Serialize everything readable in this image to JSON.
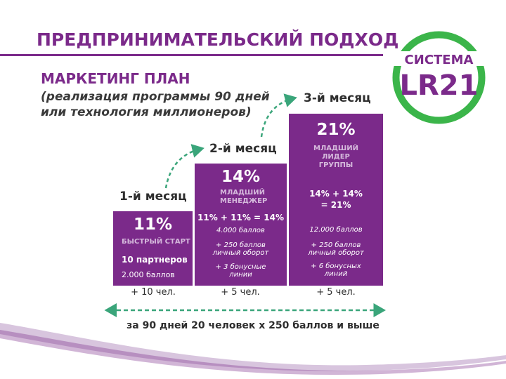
{
  "header": {
    "title": "ПРЕДПРИНИМАТЕЛЬСКИЙ ПОДХОД"
  },
  "logo": {
    "line1": "СИСТЕМА",
    "line2": "LR21"
  },
  "plan": {
    "heading": "МАРКЕТИНГ ПЛАН",
    "description_line1": "(реализация программы 90 дней",
    "description_line2": "или технология миллионеров)"
  },
  "steps": [
    {
      "month": "1-й месяц",
      "percent": "11%",
      "rank": "БЫСТРЫЙ СТАРТ",
      "partners": "10 партнеров",
      "points": "2.000 баллов",
      "people": "+ 10 чел."
    },
    {
      "month": "2-й месяц",
      "percent": "14%",
      "rank_line1": "МЛАДШИЙ",
      "rank_line2": "МЕНЕДЖЕР",
      "formula": "11% + 11% = 14%",
      "points": "4.000 баллов",
      "turnover_line1": "+ 250 баллов",
      "turnover_line2": "личный оборот",
      "bonus_line1": "+ 3 бонусные",
      "bonus_line2": "линии",
      "people": "+ 5 чел."
    },
    {
      "month": "3-й месяц",
      "percent": "21%",
      "rank_line1": "МЛАДШИЙ",
      "rank_line2": "ЛИДЕР",
      "rank_line3": "ГРУППЫ",
      "formula_line1": "14% + 14%",
      "formula_line2": "= 21%",
      "points": "12.000 баллов",
      "turnover_line1": "+ 250 баллов",
      "turnover_line2": "личный оборот",
      "bonus_line1": "+ 6 бонусных",
      "bonus_line2": "линий",
      "people": "+ 5 чел."
    }
  ],
  "summary": "за 90 дней 20 человек х 250 баллов и выше",
  "colors": {
    "brand_purple": "#7b2a8a",
    "logo_green": "#3bb54a",
    "arrow_green": "#3aa57a",
    "text_dark": "#2e2e2e"
  }
}
